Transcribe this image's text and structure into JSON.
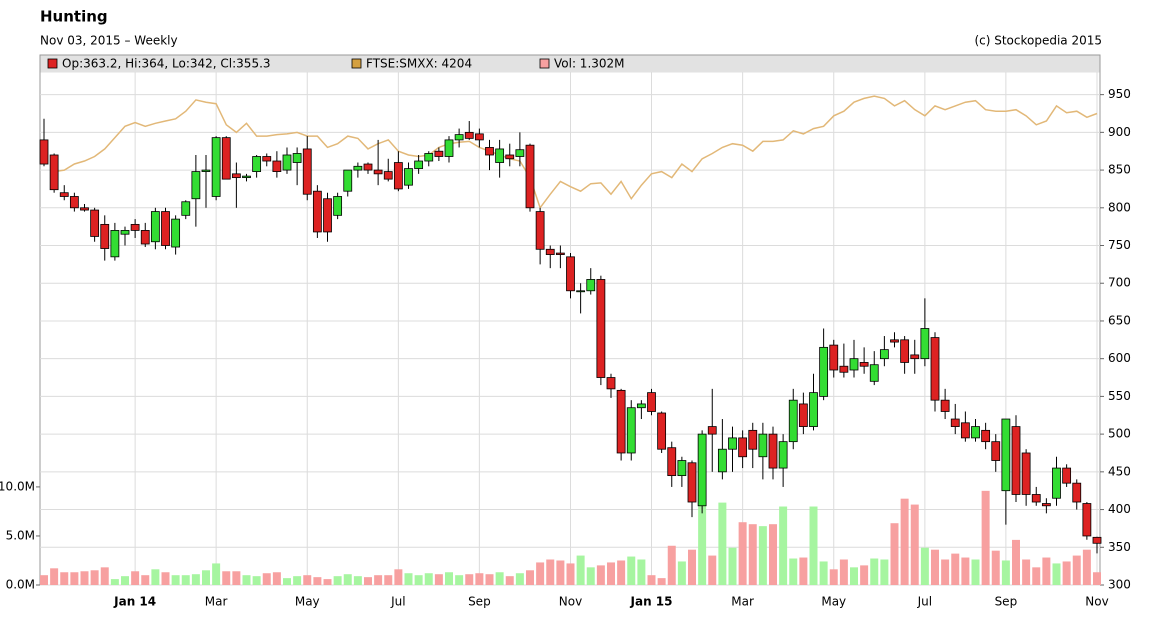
{
  "chart_data": {
    "type": "candlestick",
    "title": "Hunting",
    "subtitle": "Nov 03, 2015 – Weekly",
    "credit": "(c) Stockopedia 2015",
    "name": "Op:363.2, Hi:364, Lo:342, Cl:355.3",
    "up_color": "#33dd33",
    "down_color": "#dd2222",
    "categories": [
      null,
      null,
      null,
      null,
      null,
      null,
      null,
      null,
      null,
      "Jan 14",
      null,
      null,
      null,
      null,
      null,
      null,
      null,
      "Mar",
      null,
      null,
      null,
      null,
      null,
      null,
      null,
      null,
      "May",
      null,
      null,
      null,
      null,
      null,
      null,
      null,
      null,
      "Jul",
      null,
      null,
      null,
      null,
      null,
      null,
      null,
      "Sep",
      null,
      null,
      null,
      null,
      null,
      null,
      null,
      null,
      "Nov",
      null,
      null,
      null,
      null,
      null,
      null,
      null,
      "Jan 15",
      null,
      null,
      null,
      null,
      null,
      null,
      null,
      null,
      "Mar",
      null,
      null,
      null,
      null,
      null,
      null,
      null,
      null,
      "May",
      null,
      null,
      null,
      null,
      null,
      null,
      null,
      null,
      "Jul",
      null,
      null,
      null,
      null,
      null,
      null,
      null,
      "Sep",
      null,
      null,
      null,
      null,
      null,
      null,
      null,
      null,
      "Nov"
    ],
    "open": [
      890,
      870,
      820,
      815,
      800,
      797,
      778,
      735,
      765,
      778,
      770,
      755,
      795,
      748,
      790,
      812,
      848,
      815,
      893,
      845,
      840,
      848,
      868,
      862,
      850,
      860,
      878,
      822,
      812,
      790,
      822,
      850,
      858,
      850,
      848,
      860,
      830,
      852,
      862,
      875,
      868,
      890,
      900,
      898,
      880,
      860,
      870,
      868,
      883,
      795,
      745,
      740,
      735,
      690,
      690,
      705,
      575,
      558,
      475,
      535,
      555,
      528,
      482,
      445,
      462,
      405,
      510,
      450,
      480,
      495,
      505,
      470,
      500,
      455,
      490,
      540,
      510,
      550,
      618,
      590,
      585,
      595,
      570,
      600,
      625,
      625,
      605,
      600,
      628,
      545,
      520,
      515,
      495,
      505,
      490,
      425,
      510,
      475,
      420,
      408,
      415,
      455,
      435,
      408,
      363.2
    ],
    "high": [
      918,
      872,
      830,
      820,
      805,
      800,
      790,
      780,
      775,
      785,
      780,
      800,
      800,
      790,
      810,
      870,
      870,
      895,
      895,
      860,
      845,
      870,
      872,
      875,
      880,
      880,
      895,
      830,
      820,
      820,
      850,
      860,
      860,
      890,
      865,
      875,
      860,
      870,
      875,
      880,
      895,
      905,
      915,
      905,
      890,
      890,
      885,
      900,
      885,
      800,
      750,
      750,
      740,
      700,
      720,
      710,
      580,
      560,
      545,
      545,
      560,
      530,
      490,
      470,
      465,
      505,
      560,
      520,
      510,
      505,
      515,
      515,
      510,
      500,
      560,
      555,
      580,
      640,
      625,
      620,
      625,
      615,
      610,
      630,
      635,
      630,
      625,
      680,
      635,
      560,
      540,
      530,
      520,
      515,
      500,
      520,
      525,
      480,
      430,
      415,
      470,
      460,
      440,
      410,
      364
    ],
    "low": [
      855,
      820,
      810,
      795,
      795,
      755,
      730,
      730,
      750,
      760,
      748,
      745,
      745,
      738,
      785,
      775,
      800,
      810,
      838,
      800,
      835,
      840,
      855,
      840,
      845,
      830,
      810,
      760,
      755,
      785,
      815,
      840,
      845,
      830,
      835,
      822,
      825,
      845,
      855,
      862,
      860,
      880,
      890,
      880,
      850,
      840,
      855,
      855,
      795,
      725,
      720,
      720,
      680,
      660,
      685,
      565,
      548,
      465,
      465,
      520,
      525,
      475,
      430,
      430,
      390,
      395,
      450,
      440,
      450,
      455,
      455,
      440,
      440,
      430,
      480,
      500,
      505,
      545,
      575,
      575,
      575,
      580,
      565,
      590,
      615,
      580,
      580,
      590,
      530,
      520,
      500,
      490,
      490,
      480,
      450,
      380,
      410,
      405,
      405,
      395,
      405,
      430,
      400,
      360,
      342
    ],
    "close": [
      858,
      824,
      815,
      800,
      797,
      762,
      746,
      770,
      770,
      770,
      752,
      795,
      750,
      785,
      808,
      848,
      850,
      893,
      838,
      840,
      842,
      868,
      862,
      848,
      870,
      872,
      818,
      768,
      768,
      815,
      850,
      855,
      850,
      845,
      838,
      825,
      852,
      862,
      872,
      868,
      890,
      897,
      892,
      890,
      870,
      878,
      865,
      877,
      800,
      745,
      738,
      738,
      690,
      690,
      705,
      575,
      560,
      475,
      535,
      540,
      530,
      480,
      445,
      465,
      410,
      500,
      500,
      480,
      495,
      470,
      480,
      500,
      455,
      490,
      545,
      510,
      555,
      615,
      585,
      582,
      600,
      590,
      592,
      612,
      622,
      595,
      600,
      640,
      545,
      530,
      510,
      495,
      510,
      490,
      465,
      520,
      420,
      420,
      410,
      405,
      455,
      435,
      410,
      365,
      355.3
    ],
    "ylim": [
      300,
      980
    ],
    "yticks": [
      300,
      350,
      400,
      450,
      500,
      550,
      600,
      650,
      700,
      750,
      800,
      850,
      900,
      950
    ],
    "grid": true,
    "series": [
      {
        "name": "FTSE:SMXX: 4204",
        "color": "#e2b878",
        "swatch_color": "#d4a040",
        "values": [
          null,
          848,
          850,
          858,
          862,
          868,
          878,
          893,
          908,
          913,
          908,
          912,
          915,
          918,
          928,
          943,
          940,
          938,
          910,
          900,
          912,
          895,
          895,
          897,
          898,
          900,
          895,
          895,
          880,
          885,
          895,
          892,
          878,
          885,
          890,
          875,
          870,
          868,
          870,
          880,
          885,
          887,
          888,
          880,
          875,
          870,
          865,
          862,
          840,
          800,
          818,
          835,
          828,
          822,
          832,
          833,
          818,
          835,
          812,
          830,
          845,
          848,
          840,
          858,
          848,
          865,
          872,
          880,
          885,
          883,
          875,
          888,
          888,
          890,
          902,
          898,
          905,
          908,
          922,
          928,
          940,
          945,
          948,
          945,
          935,
          942,
          930,
          922,
          935,
          930,
          935,
          940,
          942,
          930,
          928,
          928,
          930,
          922,
          910,
          915,
          935,
          926,
          928,
          920,
          925
        ]
      }
    ],
    "volume": {
      "name": "Vol: 1.302M",
      "color": "#f7a0a0",
      "up_color": "#a6f5a0",
      "values": [
        1.0,
        1.7,
        1.3,
        1.3,
        1.4,
        1.5,
        1.8,
        0.6,
        0.9,
        1.4,
        1.0,
        1.6,
        1.3,
        1.0,
        1.0,
        1.1,
        1.5,
        2.2,
        1.4,
        1.4,
        1.0,
        0.9,
        1.2,
        1.3,
        0.7,
        0.9,
        1.0,
        0.8,
        0.6,
        0.9,
        1.1,
        0.9,
        0.8,
        1.0,
        1.0,
        1.6,
        1.2,
        1.0,
        1.2,
        1.1,
        1.3,
        1.0,
        1.1,
        1.2,
        1.1,
        1.3,
        0.9,
        1.2,
        1.5,
        2.3,
        2.6,
        2.5,
        2.2,
        3.0,
        1.8,
        2.0,
        2.3,
        2.5,
        2.9,
        2.6,
        1.0,
        0.7,
        4.0,
        2.4,
        3.6,
        8.2,
        3.0,
        8.4,
        3.8,
        6.4,
        6.2,
        6.0,
        6.2,
        8.0,
        2.7,
        2.8,
        8.0,
        2.4,
        1.6,
        2.6,
        1.8,
        2.0,
        2.7,
        2.6,
        6.3,
        8.8,
        8.2,
        3.8,
        3.6,
        2.6,
        3.2,
        2.8,
        2.6,
        9.6,
        3.5,
        2.5,
        4.6,
        2.6,
        1.8,
        2.8,
        2.2,
        2.4,
        3.0,
        3.6,
        1.3
      ],
      "ylim": [
        0,
        52.3
      ],
      "yticks": [
        {
          "value": 0,
          "label": "0.0M"
        },
        {
          "value": 5,
          "label": "5.0M"
        },
        {
          "value": 10,
          "label": "10.0M"
        }
      ]
    }
  }
}
